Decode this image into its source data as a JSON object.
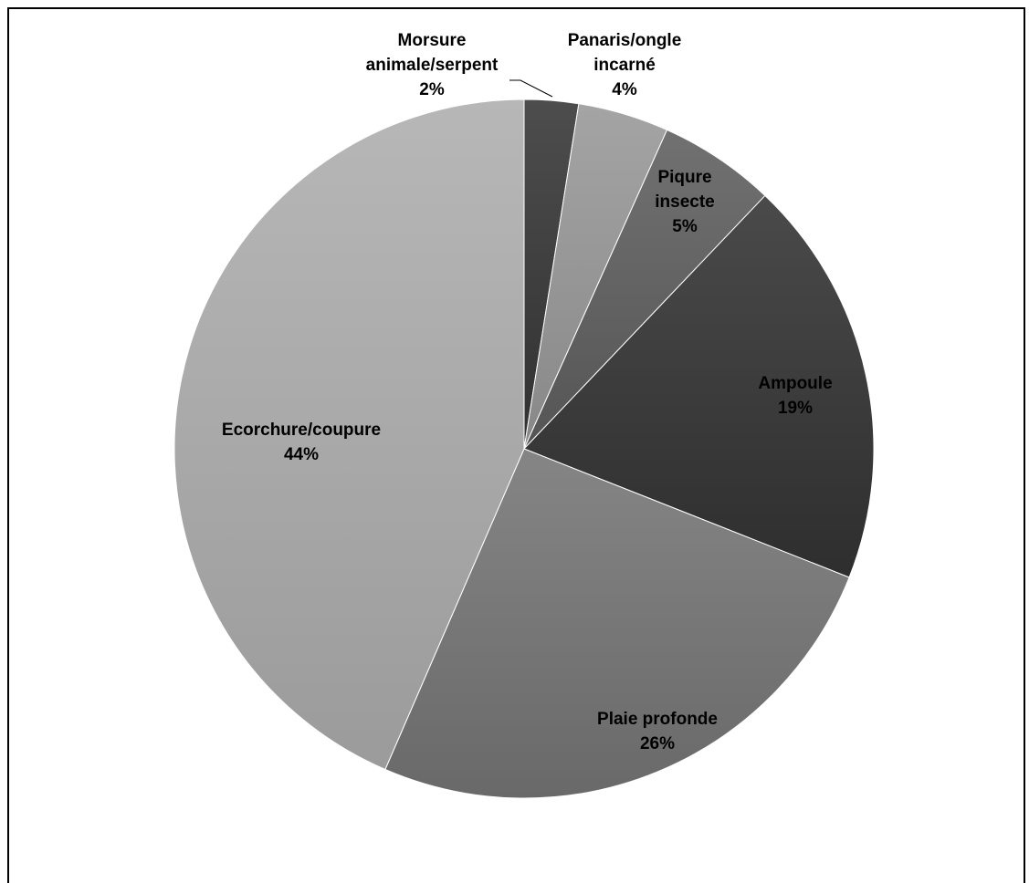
{
  "chart_data": {
    "type": "pie",
    "title": "",
    "start_angle_deg": 0,
    "direction": "clockwise",
    "slices": [
      {
        "label_lines": [
          "Morsure",
          "animale/serpent"
        ],
        "percent_label": "2%",
        "value": 2.5,
        "color": "#3f3f3f"
      },
      {
        "label_lines": [
          "Panaris/ongle",
          "incarné"
        ],
        "percent_label": "4%",
        "value": 4.2,
        "color": "#969696"
      },
      {
        "label_lines": [
          "Piqure",
          "insecte"
        ],
        "percent_label": "5%",
        "value": 5.4,
        "color": "#636363"
      },
      {
        "label_lines": [
          "Ampoule"
        ],
        "percent_label": "19%",
        "value": 18.9,
        "color": "#3c3c3c"
      },
      {
        "label_lines": [
          "Plaie profonde"
        ],
        "percent_label": "26%",
        "value": 25.5,
        "color": "#777777"
      },
      {
        "label_lines": [
          "Ecorchure/coupure"
        ],
        "percent_label": "44%",
        "value": 43.5,
        "color": "#a9a9a9"
      }
    ],
    "legend": "none",
    "data_labels": "category name and percentage"
  }
}
